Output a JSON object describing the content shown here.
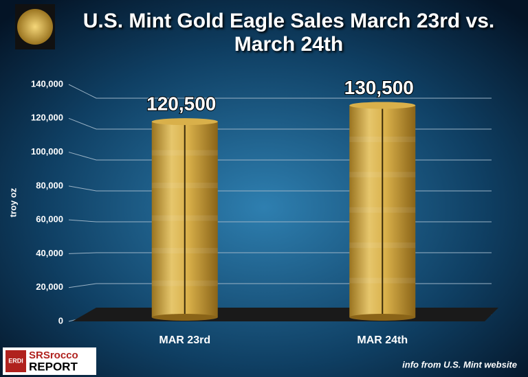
{
  "chart_data": {
    "type": "bar",
    "title": "U.S. Mint Gold Eagle Sales March 23rd vs. March 24th",
    "ylabel": "troy oz",
    "categories": [
      "MAR 23rd",
      "MAR 24th"
    ],
    "values": [
      120500,
      130500
    ],
    "value_labels": [
      "120,500",
      "130,500"
    ],
    "color": "#d9b04a",
    "ylim": [
      0,
      140000
    ],
    "yticks": [
      0,
      {
        "value": 20000,
        "label": "20,000"
      },
      {
        "value": 40000,
        "label": "40,000"
      },
      {
        "value": 60000,
        "label": "60,000"
      },
      {
        "value": 80000,
        "label": "80,000"
      },
      {
        "value": 100000,
        "label": "100,000"
      },
      {
        "value": 120000,
        "label": "120,000"
      },
      {
        "value": 140000,
        "label": "140,000"
      }
    ],
    "grid": true,
    "source": "info from U.S. Mint website",
    "logo_badge": "ERDI",
    "logo_text": [
      "SRSrocco",
      "REPORT"
    ]
  }
}
